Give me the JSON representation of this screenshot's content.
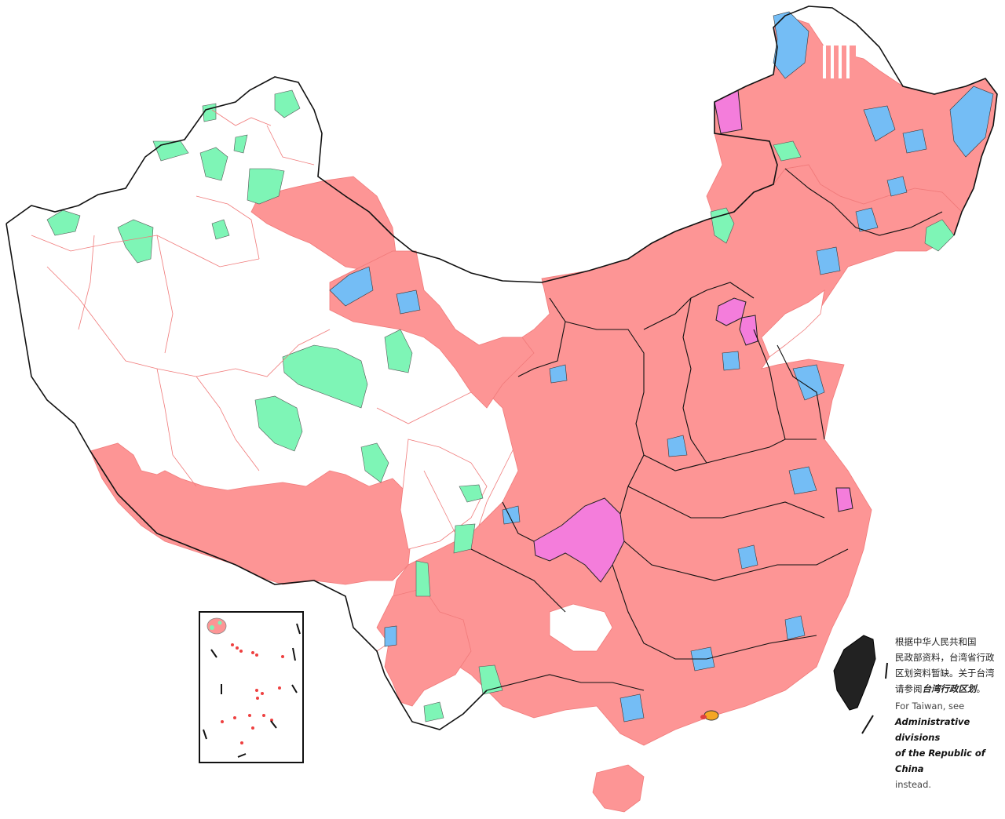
{
  "colors": {
    "county_city": "#fd9595",
    "district": "#74bdf5",
    "autonomous_county": "#7ef5b6",
    "municipality": "#f47ddb",
    "taiwan": "#222222",
    "border_national": "#111111",
    "border_provincial": "#111111",
    "border_prefectural": "#f07a7a",
    "unfilled": "#ffffff"
  },
  "note": {
    "zh_line1": "根据中华人民共和国",
    "zh_line2": "民政部资料，台湾省行政",
    "zh_line3": "区划资料暂缺。关于台湾",
    "zh_line4_prefix": "请参阅",
    "zh_line4_link": "台湾行政区划",
    "zh_line4_suffix": "。",
    "en_line1": "For Taiwan, see",
    "en_link_line1": "Administrative divisions",
    "en_link_line2": "of the Republic of China",
    "en_suffix": "instead."
  },
  "inset": {
    "icon_names": [
      "paracel-islands-icon",
      "spratly-islands-icon",
      "nine-dash-line-icon"
    ]
  }
}
